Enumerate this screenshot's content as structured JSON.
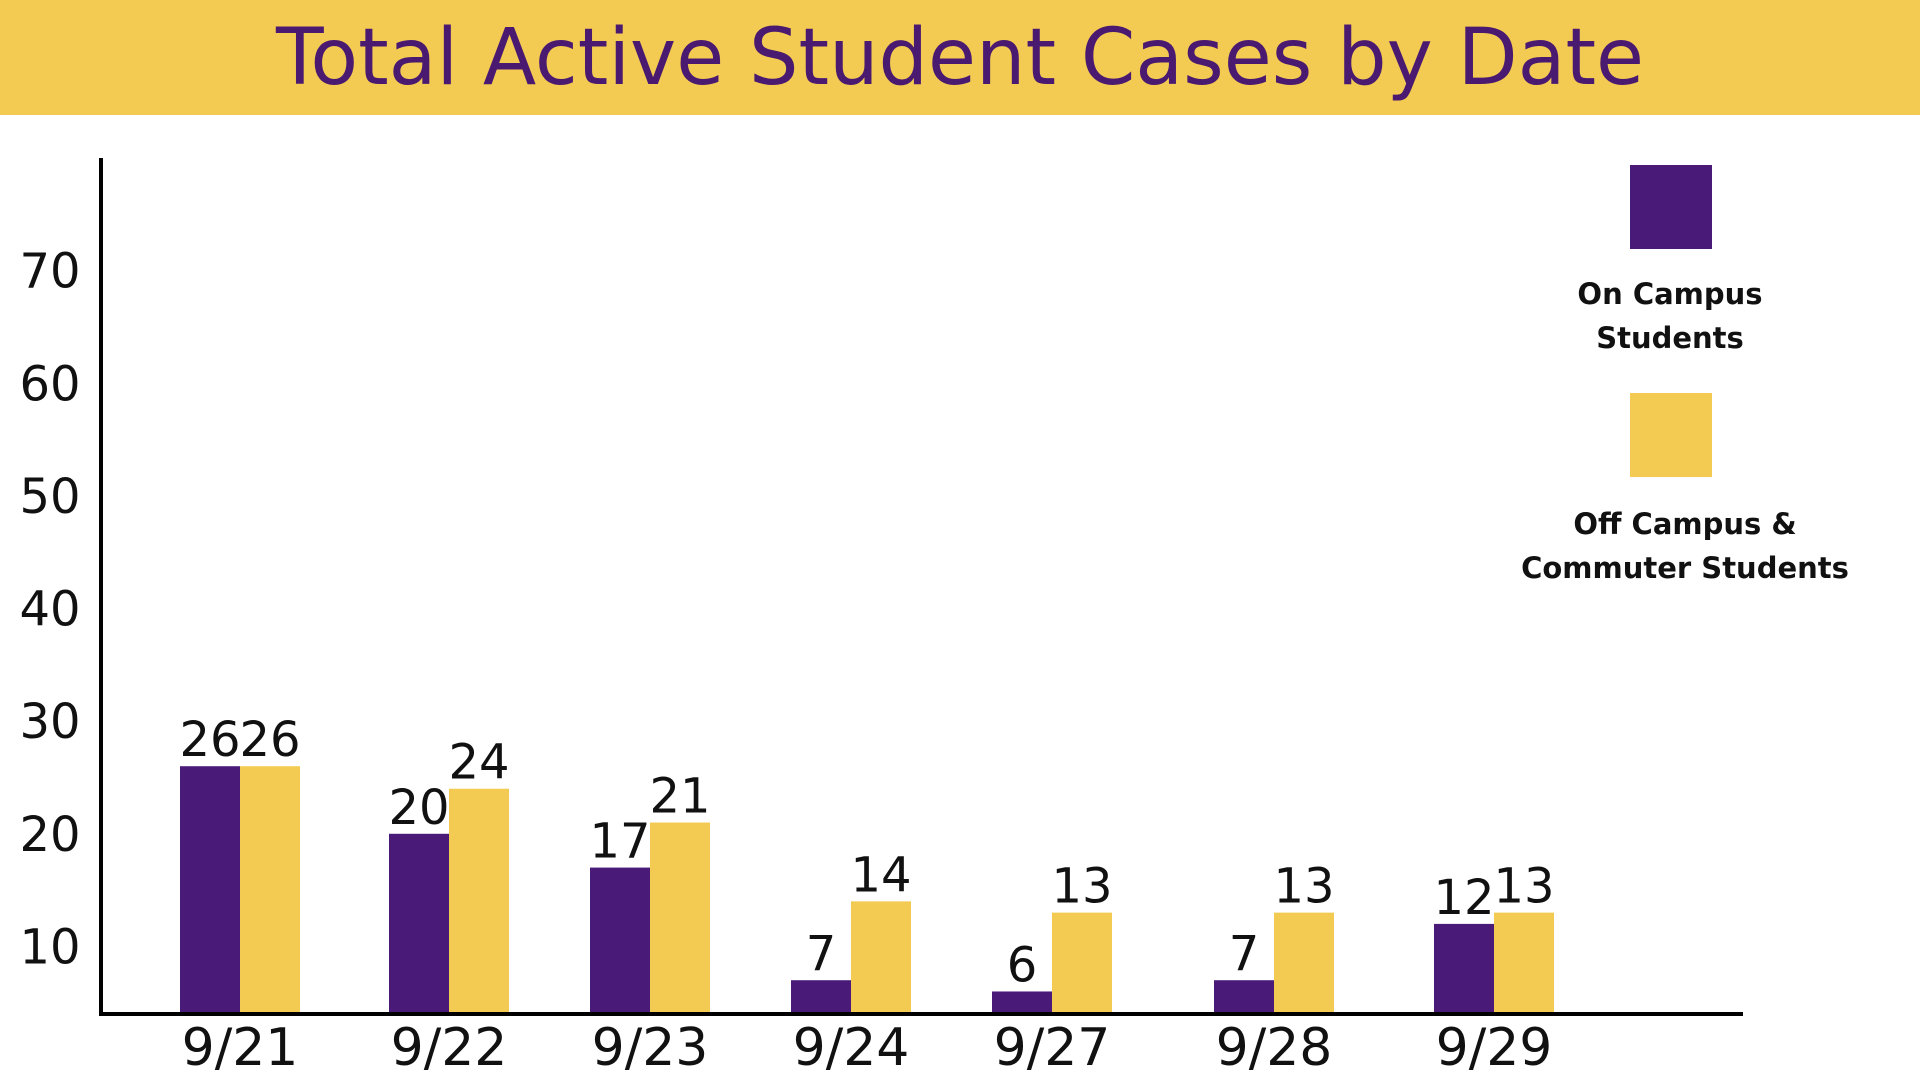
{
  "chart_data": {
    "type": "bar",
    "title": "Total Active Student Cases by Date",
    "categories": [
      "9/21",
      "9/22",
      "9/23",
      "9/24",
      "9/27",
      "9/28",
      "9/29"
    ],
    "series": [
      {
        "name": "On Campus Students",
        "values": [
          26,
          20,
          17,
          7,
          6,
          7,
          12
        ],
        "color": "#4a1a79"
      },
      {
        "name": "Off Campus & Commuter Students",
        "values": [
          26,
          24,
          21,
          14,
          13,
          13,
          13
        ],
        "color": "#f4cb52"
      }
    ],
    "yticks": [
      10,
      20,
      30,
      40,
      50,
      60,
      70
    ],
    "ylim": [
      4,
      80
    ],
    "xlabel": "",
    "ylabel": "",
    "grid": false,
    "legend": "top-right",
    "data_labels": true
  },
  "legend": {
    "on_campus_line1": "On Campus",
    "on_campus_line2": "Students",
    "off_campus_line1": "Off Campus &",
    "off_campus_line2": "Commuter Students"
  },
  "colors": {
    "title_bar": "#f4cb52",
    "title_text": "#4a1a70",
    "axis": "#000000"
  }
}
